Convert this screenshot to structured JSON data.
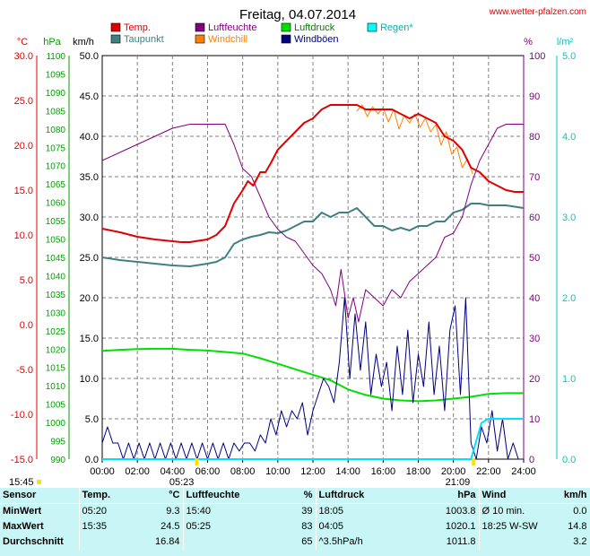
{
  "chart_data": {
    "type": "line",
    "title": "Freitag, 04.07.2014",
    "site": "www.wetter-pfalzen.com",
    "x_ticks": [
      "00:00",
      "02:00",
      "04:00",
      "06:00",
      "08:00",
      "10:00",
      "12:00",
      "14:00",
      "16:00",
      "18:00",
      "20:00",
      "22:00",
      "24:00"
    ],
    "xlim": [
      0,
      24
    ],
    "axes": {
      "temp": {
        "unit": "°C",
        "min": -15,
        "max": 30,
        "ticks": [
          "30.0",
          "25.0",
          "20.0",
          "15.0",
          "10.0",
          "5.0",
          "0.0",
          "-5.0",
          "-10.0",
          "-15.0"
        ],
        "color": "#e00000"
      },
      "press": {
        "unit": "hPa",
        "min": 990,
        "max": 1100,
        "ticks": [
          "1100",
          "1095",
          "1090",
          "1085",
          "1080",
          "1075",
          "1070",
          "1065",
          "1060",
          "1055",
          "1050",
          "1045",
          "1040",
          "1035",
          "1030",
          "1025",
          "1020",
          "1015",
          "1010",
          "1005",
          "1000",
          "995",
          "990"
        ],
        "color": "#00a000"
      },
      "wind": {
        "unit": "km/h",
        "min": 0,
        "max": 50,
        "ticks": [
          "50.0",
          "45.0",
          "40.0",
          "35.0",
          "30.0",
          "25.0",
          "20.0",
          "15.0",
          "10.0",
          "5.0",
          "0.0"
        ],
        "color": "#000000"
      },
      "hum": {
        "unit": "%",
        "min": 0,
        "max": 100,
        "ticks": [
          "100",
          "90",
          "80",
          "70",
          "60",
          "50",
          "40",
          "30",
          "20",
          "10",
          "0"
        ],
        "color": "#800080"
      },
      "rain": {
        "unit": "l/m²",
        "min": 0,
        "max": 5,
        "ticks": [
          "5.0",
          "4.0",
          "3.0",
          "2.0",
          "1.0",
          "0.0"
        ],
        "color": "#00c8c8"
      }
    },
    "legend": [
      {
        "name": "Temp.",
        "color": "#e00000"
      },
      {
        "name": "Luftfeuchte",
        "color": "#800080"
      },
      {
        "name": "Luftdruck",
        "color": "#00e000"
      },
      {
        "name": "Regen*",
        "color": "#00ffff"
      },
      {
        "name": "Taupunkt",
        "color": "#408080"
      },
      {
        "name": "Windchill",
        "color": "#ff8000"
      },
      {
        "name": "Windböen",
        "color": "#000080"
      }
    ],
    "sun_markers": {
      "sunrise": "05:23",
      "sunset": "21:09",
      "start": "15:45"
    },
    "series": [
      {
        "key": "temp",
        "axis": "temp",
        "color": "#e00000",
        "width": 2,
        "x": [
          0,
          1,
          2,
          3,
          4,
          4.5,
          5,
          5.3,
          6,
          6.5,
          7,
          7.5,
          8,
          8.3,
          8.6,
          9,
          9.3,
          9.6,
          10,
          10.5,
          11,
          11.5,
          12,
          12.5,
          13,
          13.5,
          14,
          14.5,
          15,
          15.5,
          16,
          16.5,
          17,
          17.5,
          18,
          18.5,
          19,
          19.5,
          20,
          20.5,
          21,
          21.5,
          22,
          22.5,
          23,
          23.5,
          24
        ],
        "y": [
          10.7,
          10.3,
          9.8,
          9.5,
          9.3,
          9.2,
          9.2,
          9.3,
          9.5,
          10,
          11,
          13.5,
          15,
          16,
          15.5,
          17,
          17,
          18,
          19.5,
          20.5,
          21.5,
          22.5,
          23,
          24,
          24.5,
          24.5,
          24.5,
          24.5,
          24,
          24,
          24,
          24,
          23.5,
          23,
          23.5,
          23,
          22.5,
          21,
          20.5,
          19.5,
          17.5,
          17,
          16,
          15.5,
          15,
          14.8,
          14.8
        ]
      },
      {
        "key": "windchill",
        "axis": "temp",
        "color": "#ff8000",
        "width": 1,
        "x": [
          14.5,
          14.8,
          15.1,
          15.4,
          15.7,
          16,
          16.3,
          16.6,
          16.9,
          17.2,
          17.5,
          17.8,
          18.1,
          18.4,
          18.7,
          19,
          19.3,
          19.6,
          19.9,
          20.2,
          20.5,
          20.8,
          21.1
        ],
        "y": [
          23.8,
          24.5,
          23.2,
          24.3,
          23.5,
          24.2,
          22.6,
          24,
          21.8,
          23.3,
          22.5,
          23.5,
          22,
          23,
          21.5,
          22.3,
          20,
          21.5,
          19,
          19.8,
          17.5,
          18.5,
          16.8
        ]
      },
      {
        "key": "dew",
        "axis": "temp",
        "color": "#408080",
        "width": 2,
        "x": [
          0,
          1,
          2,
          3,
          4,
          5,
          6,
          6.5,
          7,
          7.5,
          8,
          8.5,
          9,
          9.5,
          10,
          10.5,
          11,
          11.5,
          12,
          12.5,
          13,
          13.5,
          14,
          14.5,
          15,
          15.5,
          16,
          16.5,
          17,
          17.5,
          18,
          18.5,
          19,
          19.5,
          20,
          20.5,
          21,
          21.5,
          22,
          23,
          24
        ],
        "y": [
          7.5,
          7.2,
          7,
          6.8,
          6.6,
          6.5,
          6.8,
          7,
          7.5,
          9,
          9.5,
          9.8,
          10,
          10.3,
          10.2,
          10.5,
          11,
          11.5,
          11.5,
          12.5,
          12,
          12.5,
          12.5,
          13,
          12,
          11,
          11,
          10.5,
          10.8,
          10.5,
          11,
          11,
          11.5,
          11.5,
          12.5,
          12.8,
          13.5,
          13.5,
          13.3,
          13.3,
          13
        ]
      },
      {
        "key": "hum",
        "axis": "hum",
        "color": "#800080",
        "width": 1,
        "x": [
          0,
          1,
          2,
          3,
          4,
          5,
          6,
          7,
          7.5,
          8,
          8.5,
          9,
          9.5,
          10,
          10.5,
          11,
          11.5,
          12,
          12.5,
          13,
          13.3,
          13.6,
          14,
          14.3,
          14.6,
          15,
          15.5,
          16,
          16.5,
          17,
          17.5,
          18,
          18.5,
          19,
          19.5,
          20,
          20.5,
          21,
          21.5,
          22,
          22.5,
          23,
          24
        ],
        "y": [
          74,
          76,
          78,
          80,
          82,
          83,
          83,
          83,
          78,
          72,
          70,
          65,
          60,
          57,
          55,
          54,
          51,
          48,
          46,
          42,
          38,
          47,
          35,
          40,
          34,
          42,
          40,
          38,
          42,
          40,
          44,
          46,
          48,
          50,
          55,
          56,
          60,
          68,
          74,
          78,
          82,
          83,
          83
        ]
      },
      {
        "key": "press",
        "axis": "press",
        "color": "#00e000",
        "width": 2,
        "x": [
          0,
          1,
          2,
          3,
          4,
          5,
          6,
          7,
          8,
          9,
          10,
          11,
          12,
          13,
          14,
          15,
          16,
          17,
          18,
          19,
          20,
          21,
          22,
          23,
          24
        ],
        "y": [
          1019.5,
          1019.8,
          1020,
          1020.1,
          1020.1,
          1019.8,
          1019.6,
          1019.2,
          1018.8,
          1017.5,
          1016,
          1014.5,
          1013,
          1011.5,
          1009,
          1007.5,
          1006.5,
          1006,
          1005.8,
          1006,
          1006.5,
          1007,
          1007.8,
          1008,
          1008
        ]
      },
      {
        "key": "gust",
        "axis": "wind",
        "color": "#000080",
        "width": 1,
        "x": [
          0,
          0.3,
          0.6,
          0.9,
          1.2,
          1.5,
          1.8,
          2.1,
          2.4,
          2.7,
          3,
          3.3,
          3.6,
          3.9,
          4.2,
          4.5,
          4.8,
          5.1,
          5.4,
          5.7,
          6,
          6.3,
          6.6,
          6.9,
          7.2,
          7.5,
          7.8,
          8.1,
          8.4,
          8.7,
          9,
          9.3,
          9.6,
          9.9,
          10.2,
          10.5,
          10.8,
          11.1,
          11.4,
          11.7,
          12,
          12.3,
          12.6,
          12.9,
          13.2,
          13.5,
          13.8,
          14.1,
          14.4,
          14.7,
          15,
          15.3,
          15.6,
          15.9,
          16.2,
          16.5,
          16.8,
          17.1,
          17.4,
          17.7,
          18,
          18.3,
          18.6,
          18.9,
          19.2,
          19.5,
          19.8,
          20.1,
          20.4,
          20.7,
          21,
          21.3,
          21.6,
          21.9,
          22.2,
          22.5,
          22.8,
          23.1,
          23.4,
          23.7,
          24
        ],
        "y": [
          2,
          4,
          2,
          2,
          0,
          2,
          0,
          2,
          0,
          2,
          0,
          2,
          0,
          2,
          0,
          2,
          0,
          2,
          0,
          2,
          0,
          2,
          0,
          2,
          0,
          2,
          1,
          2,
          2,
          1,
          3,
          2,
          5,
          3,
          6,
          4,
          6,
          5,
          7,
          3,
          6,
          8,
          10,
          9,
          7,
          12,
          20,
          10,
          18,
          11,
          17,
          8,
          13,
          9,
          12,
          6,
          14,
          8,
          16,
          7,
          13,
          9,
          17,
          8,
          14,
          6,
          16,
          19,
          8,
          20,
          2,
          0,
          4,
          2,
          6,
          1,
          5,
          0,
          2,
          0,
          0
        ]
      }
    ],
    "rain_points": {
      "x": [
        0,
        21,
        21.6,
        22,
        24
      ],
      "y": [
        0,
        0,
        0.45,
        0.5,
        0.5
      ]
    }
  },
  "stats": {
    "headers": {
      "sensor": "Sensor",
      "temp": "Temp.",
      "temp_unit": "°C",
      "hum": "Luftfeuchte",
      "hum_unit": "%",
      "press": "Luftdruck",
      "press_unit": "hPa",
      "wind": "Wind",
      "wind_unit": "km/h"
    },
    "rows": [
      {
        "label": "MinWert",
        "temp_time": "05:20",
        "temp_val": "9.3",
        "hum_time": "15:40",
        "hum_val": "39",
        "press_time": "18:05",
        "press_val": "1003.8",
        "wind_time": "Ø 10 min.",
        "wind_val": "0.0"
      },
      {
        "label": "MaxWert",
        "temp_time": "15:35",
        "temp_val": "24.5",
        "hum_time": "05:25",
        "hum_val": "83",
        "press_time": "04:05",
        "press_val": "1020.1",
        "wind_time": "18:25   W-SW",
        "wind_val": "14.8"
      },
      {
        "label": "Durchschnitt",
        "temp_time": "",
        "temp_val": "16.84",
        "hum_time": "",
        "hum_val": "65",
        "press_time": "^3.5hPa/h",
        "press_val": "1011.8",
        "wind_time": "",
        "wind_val": "3.2"
      }
    ]
  }
}
